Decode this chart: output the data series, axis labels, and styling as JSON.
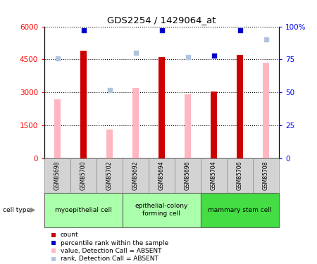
{
  "title": "GDS2254 / 1429064_at",
  "samples": [
    "GSM85698",
    "GSM85700",
    "GSM85702",
    "GSM85692",
    "GSM85694",
    "GSM85696",
    "GSM85704",
    "GSM85706",
    "GSM85708"
  ],
  "count_values": [
    null,
    4900,
    null,
    null,
    4600,
    null,
    3050,
    4700,
    null
  ],
  "percentile_rank": [
    null,
    97,
    null,
    null,
    97,
    null,
    78,
    97,
    null
  ],
  "absent_value": [
    2700,
    null,
    1300,
    3200,
    null,
    2900,
    null,
    null,
    4350
  ],
  "absent_rank": [
    76,
    null,
    52,
    80,
    null,
    77,
    null,
    null,
    90
  ],
  "ylim_left": [
    0,
    6000
  ],
  "ylim_right": [
    0,
    100
  ],
  "left_ticks": [
    0,
    1500,
    3000,
    4500,
    6000
  ],
  "right_ticks": [
    0,
    25,
    50,
    75,
    100
  ],
  "right_tick_labels": [
    "0",
    "25",
    "50",
    "75",
    "100%"
  ],
  "bar_width": 0.25,
  "count_color": "#cc0000",
  "absent_value_color": "#ffb6c1",
  "absent_rank_color": "#b0c4de",
  "percentile_color": "#0000cc",
  "cell_type_colors": [
    "#aaffaa",
    "#aaffaa",
    "#44dd44"
  ],
  "cell_ranges": [
    [
      0,
      3
    ],
    [
      3,
      6
    ],
    [
      6,
      9
    ]
  ],
  "cell_labels": [
    "myoepithelial cell",
    "epithelial-colony\nforming cell",
    "mammary stem cell"
  ],
  "legend_items": [
    {
      "color": "#cc0000",
      "label": "count"
    },
    {
      "color": "#0000cc",
      "label": "percentile rank within the sample"
    },
    {
      "color": "#ffb6c1",
      "label": "value, Detection Call = ABSENT"
    },
    {
      "color": "#b0c4de",
      "label": "rank, Detection Call = ABSENT"
    }
  ]
}
